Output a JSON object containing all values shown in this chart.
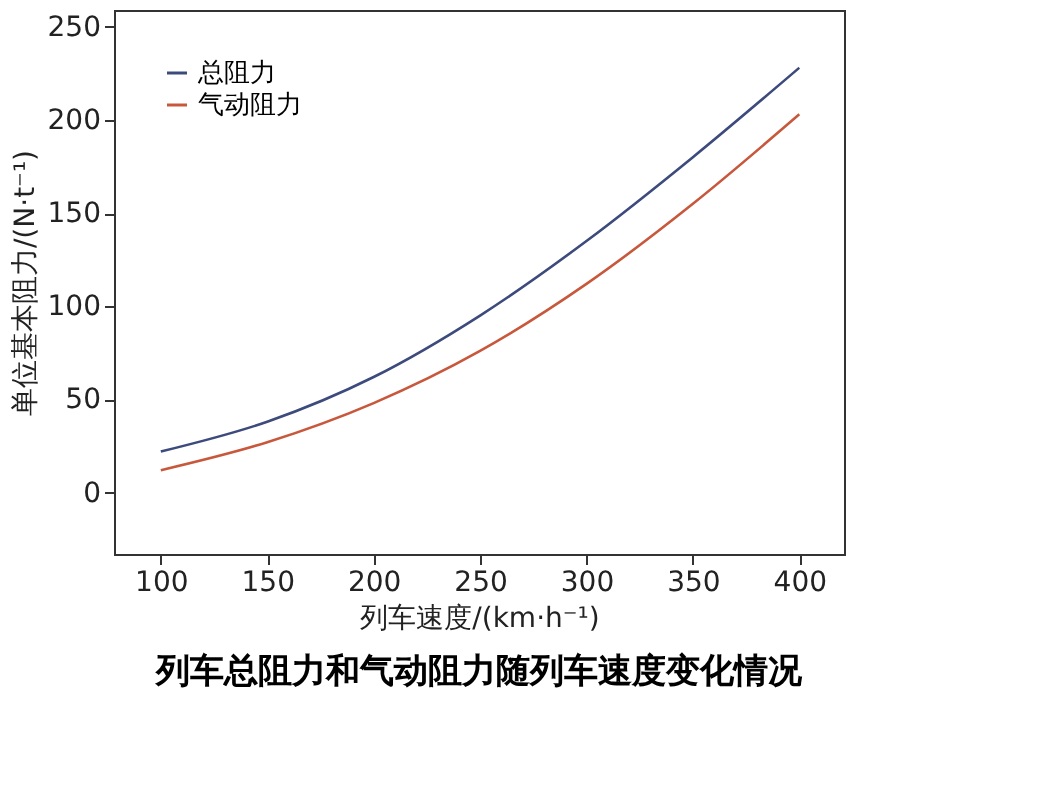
{
  "chart_data": {
    "type": "line",
    "title": "列车总阻力和气动阻力随列车速度变化情况",
    "xlabel": "列车速度/(km·h⁻¹)",
    "ylabel": "单位基本阻力/(N·t⁻¹)",
    "x": [
      100,
      150,
      200,
      250,
      300,
      350,
      400
    ],
    "series": [
      {
        "name": "总阻力",
        "color": "#3d4a7c",
        "values": [
          22,
          38,
          62,
          95,
          135,
          180,
          228
        ]
      },
      {
        "name": "气动阻力",
        "color": "#c8583c",
        "values": [
          12,
          27,
          48,
          76,
          112,
          155,
          203
        ]
      }
    ],
    "xlim": [
      78,
      421
    ],
    "ylim": [
      -33,
      259
    ],
    "xticks": [
      100,
      150,
      200,
      250,
      300,
      350,
      400
    ],
    "yticks": [
      0,
      50,
      100,
      150,
      200,
      250
    ],
    "grid": false,
    "legend": "top left",
    "marker": "none",
    "line_style": "solid"
  }
}
